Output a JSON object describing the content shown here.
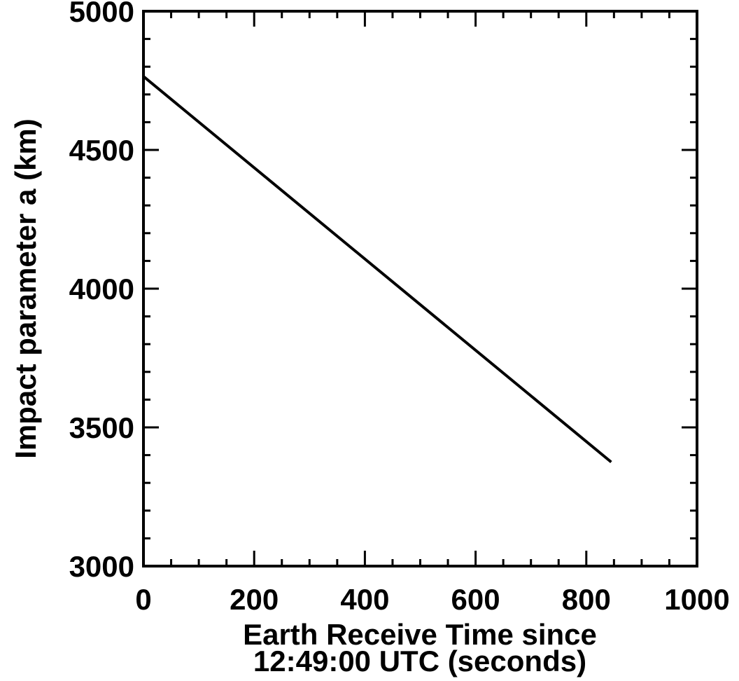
{
  "chart_data": {
    "type": "line",
    "title": "",
    "xlabel_lines": [
      "Earth Receive Time since",
      "12:49:00 UTC (seconds)"
    ],
    "ylabel": "Impact parameter a (km)",
    "xlim": [
      0,
      1000
    ],
    "ylim": [
      3000,
      5000
    ],
    "xticks": [
      0,
      200,
      400,
      600,
      800,
      1000
    ],
    "xtick_labels": [
      "0",
      "200",
      "400",
      "600",
      "800",
      "1000"
    ],
    "x_minor_step": 50,
    "yticks": [
      3000,
      3500,
      4000,
      4500,
      5000
    ],
    "ytick_labels": [
      "3000",
      "3500",
      "4000",
      "4500",
      "5000"
    ],
    "y_minor_step": 100,
    "grid": false,
    "legend": "none",
    "series": [
      {
        "x": [
          0,
          845
        ],
        "y": [
          4765,
          3375
        ],
        "color": "#000000"
      }
    ]
  }
}
